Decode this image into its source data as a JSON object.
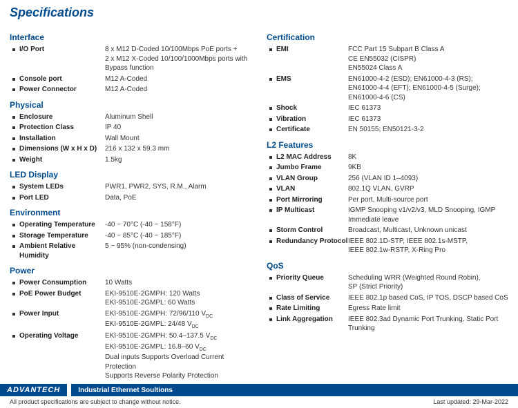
{
  "title": "Specifications",
  "left": [
    {
      "section": "Interface",
      "rows": [
        {
          "label": "I/O Port",
          "value": "8 x M12 D-Coded 10/100Mbps PoE ports +\n2 x M12 X-Coded 10/100/1000Mbps ports with\nBypass function"
        },
        {
          "label": "Console port",
          "value": "M12 A-Coded"
        },
        {
          "label": "Power Connector",
          "value": "M12 A-Coded"
        }
      ]
    },
    {
      "section": "Physical",
      "rows": [
        {
          "label": "Enclosure",
          "value": "Aluminum Shell"
        },
        {
          "label": "Protection Class",
          "value": "IP 40"
        },
        {
          "label": "Installation",
          "value": "Wall Mount"
        },
        {
          "label": "Dimensions (W x H x D)",
          "value": "216 x 132 x 59.3 mm"
        },
        {
          "label": "Weight",
          "value": "1.5kg"
        }
      ]
    },
    {
      "section": "LED Display",
      "rows": [
        {
          "label": "System LEDs",
          "value": "PWR1, PWR2, SYS, R.M., Alarm"
        },
        {
          "label": "Port LED",
          "value": "Data, PoE"
        }
      ]
    },
    {
      "section": "Environment",
      "rows": [
        {
          "label": "Operating Temperature",
          "value": "-40 ~ 70°C (-40 ~ 158°F)"
        },
        {
          "label": "Storage Temperature",
          "value": "-40 ~ 85°C (-40 ~ 185°F)"
        },
        {
          "label": "Ambient Relative Humidity",
          "value": "5 ~ 95% (non-condensing)"
        }
      ]
    },
    {
      "section": "Power",
      "rows": [
        {
          "label": "Power Consumption",
          "value": "10 Watts"
        },
        {
          "label": "PoE Power Budget",
          "value": "EKI-9510E-2GMPH: 120 Watts\nEKI-9510E-2GMPL: 60 Watts"
        },
        {
          "label": "Power Input",
          "value": "EKI-9510E-2GMPH: 72/96/110 V<sub>DC</sub>\nEKI-9510E-2GMPL: 24/48 V<sub>DC</sub>"
        },
        {
          "label": "Operating Voltage",
          "value": "EKI-9510E-2GMPH: 50.4–137.5 V<sub>DC</sub>\nEKI-9510E-2GMPL: 16.8–60 V<sub>DC</sub>\nDual inputs Supports Overload Current Protection\nSupports Reverse Polarity Protection"
        }
      ]
    }
  ],
  "right": [
    {
      "section": "Certification",
      "rows": [
        {
          "label": "EMI",
          "value": "FCC Part 15 Subpart B Class A\nCE EN55032 (CISPR)\nEN55024 Class A"
        },
        {
          "label": "EMS",
          "value": "EN61000-4-2 (ESD); EN61000-4-3 (RS);\nEN61000-4-4 (EFT); EN61000-4-5 (Surge);\nEN61000-4-6 (CS)"
        },
        {
          "label": "Shock",
          "value": "IEC 61373"
        },
        {
          "label": "Vibration",
          "value": "IEC 61373"
        },
        {
          "label": "Certificate",
          "value": "EN 50155; EN50121-3-2"
        }
      ]
    },
    {
      "section": "L2 Features",
      "rows": [
        {
          "label": "L2 MAC Address",
          "value": "8K"
        },
        {
          "label": "Jumbo Frame",
          "value": "9KB"
        },
        {
          "label": "VLAN Group",
          "value": "256 (VLAN ID 1–4093)"
        },
        {
          "label": "VLAN",
          "value": "802.1Q VLAN, GVRP"
        },
        {
          "label": "Port Mirroring",
          "value": "Per port, Multi-source port"
        },
        {
          "label": "IP Multicast",
          "value": "IGMP Snooping v1/v2/v3, MLD Snooping, IGMP Immediate leave"
        },
        {
          "label": "Storm Control",
          "value": "Broadcast, Multicast, Unknown unicast"
        },
        {
          "label": "Redundancy Protocol",
          "value": "IEEE 802.1D-STP, IEEE 802.1s-MSTP,\nIEEE 802.1w-RSTP, X-Ring Pro"
        }
      ]
    },
    {
      "section": "QoS",
      "rows": [
        {
          "label": "Priority Queue",
          "value": "Scheduling WRR (Weighted Round Robin),\nSP (Strict Priority)"
        },
        {
          "label": "Class of Service",
          "value": "IEEE 802.1p based CoS, IP TOS, DSCP based CoS"
        },
        {
          "label": "Rate Limiting",
          "value": "Egress Rate limit"
        },
        {
          "label": "Link Aggregation",
          "value": "IEEE 802.3ad Dynamic Port Trunking, Static Port Trunking"
        }
      ]
    }
  ],
  "footer": {
    "logo": "ADVANTECH",
    "tagline": "Industrial Ethernet Soultions",
    "disclaimer": "All product specifications are subject to change without notice.",
    "updated": "Last updated: 29-Mar-2022"
  }
}
